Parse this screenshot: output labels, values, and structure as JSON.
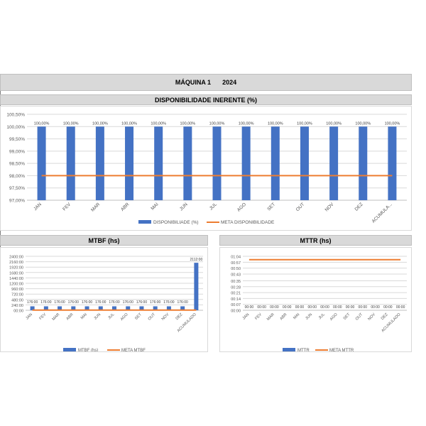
{
  "header": {
    "machine": "MÁQUINA 1",
    "year": "2024"
  },
  "panels": {
    "disponibilidade_title": "DISPONIBILIDADE INERENTE (%)",
    "mtbf_title": "MTBF (hs)",
    "mttr_title": "MTTR (hs)"
  },
  "colors": {
    "bar": "#4472c4",
    "meta": "#ed7d31",
    "grid": "#d9d9d9",
    "text": "#595959"
  },
  "chart_data": [
    {
      "id": "disponibilidade",
      "type": "bar",
      "title": "DISPONIBILIDADE INERENTE (%)",
      "categories": [
        "JAN",
        "FEV",
        "MAR",
        "ABR",
        "MAI",
        "JUN",
        "JUL",
        "AGO",
        "SET",
        "OUT",
        "NOV",
        "DEZ",
        "ACUMULADO"
      ],
      "category_tick_labels": [
        "JAN",
        "FEV",
        "MAR",
        "ABR",
        "MAI",
        "JUN",
        "JUL",
        "AGO",
        "SET",
        "OUT",
        "NOV",
        "DEZ",
        "ACUMULA..."
      ],
      "series": [
        {
          "name": "DISPONIBILIADE (%)",
          "type": "bar",
          "values": [
            100,
            100,
            100,
            100,
            100,
            100,
            100,
            100,
            100,
            100,
            100,
            100,
            100
          ],
          "data_labels": [
            "100,00%",
            "100,00%",
            "100,00%",
            "100,00%",
            "100,00%",
            "100,00%",
            "100,00%",
            "100,00%",
            "100,00%",
            "100,00%",
            "100,00%",
            "100,00%",
            "100,00%"
          ]
        },
        {
          "name": "META DISPONIBILIDADE",
          "type": "line",
          "values": [
            98,
            98,
            98,
            98,
            98,
            98,
            98,
            98,
            98,
            98,
            98,
            98,
            98
          ]
        }
      ],
      "ylim": [
        97,
        100.5
      ],
      "y_ticks": [
        97,
        97.5,
        98,
        98.5,
        99,
        99.5,
        100,
        100.5
      ],
      "y_tick_labels": [
        "97,00%",
        "97,50%",
        "98,00%",
        "98,50%",
        "99,00%",
        "99,50%",
        "100,00%",
        "100,50%"
      ],
      "grid": true,
      "legend": "bottom"
    },
    {
      "id": "mtbf",
      "type": "bar",
      "title": "MTBF (hs)",
      "categories": [
        "JAN",
        "FEV",
        "MAR",
        "ABR",
        "MAI",
        "JUN",
        "JUL",
        "AGO",
        "SET",
        "OUT",
        "NOV",
        "DEZ",
        "ACUMULADO"
      ],
      "series": [
        {
          "name": "MTBF (hs)",
          "type": "bar",
          "values": [
            176,
            176,
            176,
            176,
            176,
            176,
            176,
            176,
            176,
            176,
            176,
            176,
            2112
          ],
          "data_labels": [
            "176:00",
            "176:00",
            "176:00",
            "176:00",
            "176:00",
            "176:00",
            "176:00",
            "176:00",
            "176:00",
            "176:00",
            "176:00",
            "176:00",
            "2112:00"
          ]
        },
        {
          "name": "META MTBF",
          "type": "line",
          "values": [
            8,
            8,
            8,
            8,
            8,
            8,
            8,
            8,
            8,
            8,
            8,
            8,
            8
          ]
        }
      ],
      "ylim": [
        0,
        2400
      ],
      "y_ticks": [
        0,
        240,
        480,
        720,
        960,
        1200,
        1440,
        1680,
        1920,
        2160,
        2400
      ],
      "y_tick_labels": [
        "00:00",
        "240:00",
        "480:00",
        "720:00",
        "960:00",
        "1200:00",
        "1440:00",
        "1680:00",
        "1920:00",
        "2160:00",
        "2400:00"
      ],
      "grid": true,
      "legend": "bottom"
    },
    {
      "id": "mttr",
      "type": "bar",
      "title": "MTTR (hs)",
      "categories": [
        "JAN",
        "FEV",
        "MAR",
        "ABR",
        "MAI",
        "JUN",
        "JUL",
        "AGO",
        "SET",
        "OUT",
        "NOV",
        "DEZ",
        "ACUMULADO"
      ],
      "series": [
        {
          "name": "MTTR",
          "type": "bar",
          "values": [
            0,
            0,
            0,
            0,
            0,
            0,
            0,
            0,
            0,
            0,
            0,
            0,
            0
          ],
          "data_labels": [
            "00:00",
            "00:00",
            "00:00",
            "00:00",
            "00:00",
            "00:00",
            "00:00",
            "00:00",
            "00:00",
            "00:00",
            "00:00",
            "00:00",
            "00:00"
          ]
        },
        {
          "name": "META MTTR",
          "type": "line",
          "values": [
            60,
            60,
            60,
            60,
            60,
            60,
            60,
            60,
            60,
            60,
            60,
            60,
            60
          ]
        }
      ],
      "ylim": [
        0,
        64
      ],
      "y_ticks": [
        0,
        7,
        14,
        21,
        28,
        35,
        43,
        50,
        57,
        64
      ],
      "y_tick_labels": [
        "00:00",
        "00:07",
        "00:14",
        "00:21",
        "00:28",
        "00:35",
        "00:43",
        "00:50",
        "00:57",
        "01:04"
      ],
      "grid": true,
      "legend": "bottom"
    }
  ]
}
